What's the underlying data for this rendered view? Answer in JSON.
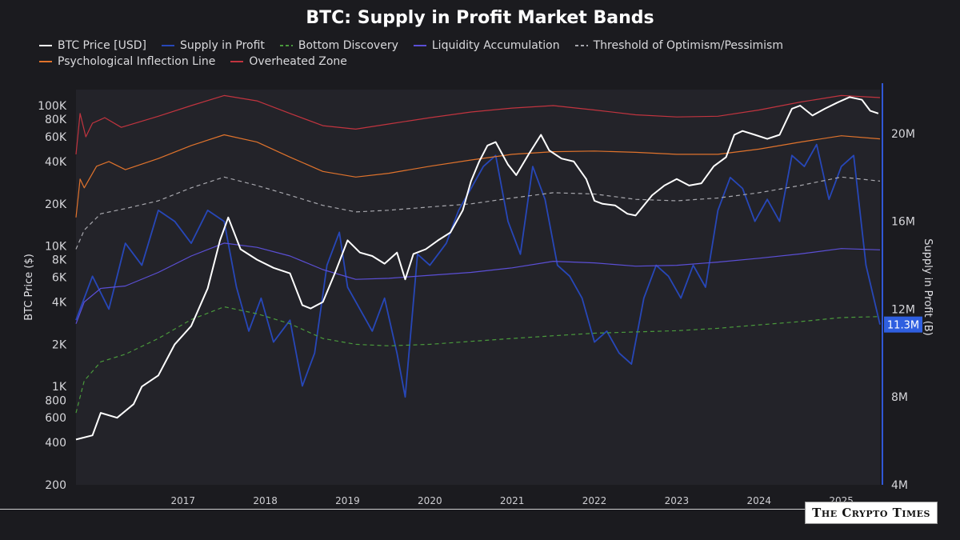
{
  "chart_data": {
    "type": "line",
    "title": "BTC: Supply in Profit Market Bands",
    "ylabel": "BTC Price ($)",
    "y2label": "Supply in Profit (B)",
    "ylim": [
      200,
      130000
    ],
    "y_scale": "log",
    "y2lim": [
      4000000,
      22000000
    ],
    "xlim": [
      2016.2,
      2025.97
    ],
    "x_ticks": [
      "2017",
      "2018",
      "2019",
      "2020",
      "2021",
      "2022",
      "2023",
      "2024",
      "2025"
    ],
    "y_ticks": [
      "100K",
      "80K",
      "60K",
      "40K",
      "20K",
      "10K",
      "8K",
      "6K",
      "4K",
      "2K",
      "1K",
      "800",
      "600",
      "400",
      "200"
    ],
    "y_tick_values": [
      100000,
      80000,
      60000,
      40000,
      20000,
      10000,
      8000,
      6000,
      4000,
      2000,
      1000,
      800,
      600,
      400,
      200
    ],
    "y2_ticks": [
      "20M",
      "16M",
      "12M",
      "8M",
      "4M"
    ],
    "y2_tick_values": [
      20000000,
      16000000,
      12000000,
      8000000,
      4000000
    ],
    "last_value_label": "11.3M",
    "last_value": 11300000,
    "legend_position": "top",
    "grid": false,
    "series": [
      {
        "name": "BTC Price [USD]",
        "color": "#ffffff",
        "dash": "solid",
        "axis": "left",
        "x": [
          2016.2,
          2016.4,
          2016.5,
          2016.7,
          2016.9,
          2017.0,
          2017.2,
          2017.4,
          2017.6,
          2017.8,
          2017.95,
          2018.05,
          2018.2,
          2018.4,
          2018.6,
          2018.8,
          2018.95,
          2019.05,
          2019.2,
          2019.35,
          2019.5,
          2019.65,
          2019.8,
          2019.95,
          2020.1,
          2020.2,
          2020.3,
          2020.45,
          2020.6,
          2020.75,
          2020.9,
          2021.0,
          2021.1,
          2021.2,
          2021.3,
          2021.45,
          2021.55,
          2021.7,
          2021.85,
          2021.95,
          2022.1,
          2022.25,
          2022.4,
          2022.5,
          2022.6,
          2022.75,
          2022.9,
          2023.0,
          2023.2,
          2023.35,
          2023.5,
          2023.65,
          2023.8,
          2023.95,
          2024.1,
          2024.2,
          2024.3,
          2024.45,
          2024.6,
          2024.75,
          2024.9,
          2025.0,
          2025.15,
          2025.3,
          2025.45,
          2025.6,
          2025.75,
          2025.85,
          2025.95
        ],
        "y": [
          420,
          450,
          650,
          600,
          750,
          1000,
          1200,
          2000,
          2700,
          5000,
          11000,
          16000,
          9500,
          8000,
          7000,
          6400,
          3800,
          3600,
          4000,
          6500,
          11000,
          9000,
          8500,
          7500,
          9000,
          5800,
          8800,
          9500,
          11000,
          12500,
          18000,
          29000,
          40000,
          52000,
          55000,
          38000,
          32000,
          45000,
          62000,
          48000,
          42000,
          40000,
          30000,
          21000,
          20000,
          19500,
          17000,
          16500,
          23000,
          27000,
          30000,
          27000,
          28000,
          37000,
          43000,
          62000,
          66000,
          62000,
          58000,
          62000,
          95000,
          100000,
          85000,
          95000,
          105000,
          115000,
          110000,
          92000,
          88000
        ]
      },
      {
        "name": "Supply in Profit",
        "color": "#2747b8",
        "dash": "solid",
        "axis": "right",
        "x": [
          2016.2,
          2016.4,
          2016.6,
          2016.8,
          2017.0,
          2017.2,
          2017.4,
          2017.6,
          2017.8,
          2018.0,
          2018.15,
          2018.3,
          2018.45,
          2018.6,
          2018.8,
          2018.95,
          2019.1,
          2019.25,
          2019.4,
          2019.5,
          2019.65,
          2019.8,
          2019.95,
          2020.1,
          2020.2,
          2020.35,
          2020.5,
          2020.7,
          2020.85,
          2021.0,
          2021.15,
          2021.3,
          2021.45,
          2021.6,
          2021.75,
          2021.9,
          2022.05,
          2022.2,
          2022.35,
          2022.5,
          2022.65,
          2022.8,
          2022.95,
          2023.1,
          2023.25,
          2023.4,
          2023.55,
          2023.7,
          2023.85,
          2024.0,
          2024.15,
          2024.3,
          2024.45,
          2024.6,
          2024.75,
          2024.9,
          2025.05,
          2025.2,
          2025.35,
          2025.5,
          2025.65,
          2025.8,
          2025.97
        ],
        "y": [
          11500000,
          13500000,
          12000000,
          15000000,
          14000000,
          16500000,
          16000000,
          15000000,
          16500000,
          16000000,
          13000000,
          11000000,
          12500000,
          10500000,
          11500000,
          8500000,
          10000000,
          14000000,
          15500000,
          13000000,
          12000000,
          11000000,
          12500000,
          10000000,
          8000000,
          14500000,
          14000000,
          15000000,
          16500000,
          17500000,
          18500000,
          19000000,
          16000000,
          14500000,
          18500000,
          17000000,
          14000000,
          13500000,
          12500000,
          10500000,
          11000000,
          10000000,
          9500000,
          12500000,
          14000000,
          13500000,
          12500000,
          14000000,
          13000000,
          16500000,
          18000000,
          17500000,
          16000000,
          17000000,
          16000000,
          19000000,
          18500000,
          19500000,
          17000000,
          18500000,
          19000000,
          14000000,
          11300000
        ]
      },
      {
        "name": "Bottom Discovery",
        "color": "#4a9a3c",
        "dash": "dashed",
        "axis": "left",
        "x": [
          2016.2,
          2016.3,
          2016.5,
          2016.8,
          2017.2,
          2017.6,
          2018.0,
          2018.4,
          2018.8,
          2019.2,
          2019.6,
          2020.0,
          2020.5,
          2021.0,
          2021.5,
          2022.0,
          2022.5,
          2023.0,
          2023.5,
          2024.0,
          2024.5,
          2025.0,
          2025.5,
          2025.97
        ],
        "y": [
          650,
          1100,
          1500,
          1700,
          2200,
          3000,
          3700,
          3300,
          2800,
          2200,
          2000,
          1950,
          2000,
          2100,
          2200,
          2300,
          2400,
          2450,
          2500,
          2600,
          2750,
          2900,
          3100,
          3150
        ]
      },
      {
        "name": "Liquidity Accumulation",
        "color": "#5b4fd6",
        "dash": "solid",
        "axis": "left",
        "x": [
          2016.2,
          2016.3,
          2016.5,
          2016.8,
          2017.2,
          2017.6,
          2018.0,
          2018.4,
          2018.8,
          2019.2,
          2019.6,
          2020.0,
          2020.5,
          2021.0,
          2021.5,
          2022.0,
          2022.5,
          2023.0,
          2023.5,
          2024.0,
          2024.5,
          2025.0,
          2025.5,
          2025.97
        ],
        "y": [
          2800,
          4000,
          5000,
          5200,
          6500,
          8500,
          10500,
          9800,
          8500,
          6800,
          5800,
          5900,
          6200,
          6500,
          7000,
          7800,
          7600,
          7200,
          7300,
          7700,
          8200,
          8800,
          9600,
          9400
        ]
      },
      {
        "name": "Threshold of Optimism/Pessimism",
        "color": "#a7a7ad",
        "dash": "dashed",
        "axis": "left",
        "x": [
          2016.2,
          2016.3,
          2016.5,
          2016.8,
          2017.2,
          2017.6,
          2018.0,
          2018.4,
          2018.8,
          2019.2,
          2019.6,
          2020.0,
          2020.5,
          2021.0,
          2021.5,
          2022.0,
          2022.5,
          2023.0,
          2023.5,
          2024.0,
          2024.5,
          2025.0,
          2025.5,
          2025.97
        ],
        "y": [
          9500,
          13000,
          17000,
          18500,
          21000,
          26000,
          31000,
          27000,
          23000,
          19500,
          17500,
          18000,
          19000,
          20000,
          22000,
          24000,
          23500,
          21500,
          21000,
          22000,
          24000,
          27000,
          31000,
          29000
        ]
      },
      {
        "name": "Psychological Inflection Line",
        "color": "#e0732c",
        "dash": "solid",
        "axis": "left",
        "x": [
          2016.2,
          2016.25,
          2016.3,
          2016.45,
          2016.6,
          2016.8,
          2017.2,
          2017.6,
          2018.0,
          2018.4,
          2018.8,
          2019.2,
          2019.6,
          2020.0,
          2020.5,
          2021.0,
          2021.5,
          2022.0,
          2022.5,
          2023.0,
          2023.5,
          2024.0,
          2024.5,
          2025.0,
          2025.5,
          2025.97
        ],
        "y": [
          16000,
          30000,
          26000,
          37000,
          40000,
          35000,
          42000,
          52000,
          62000,
          55000,
          43000,
          34000,
          31000,
          33000,
          37000,
          41000,
          45000,
          47000,
          47500,
          46500,
          45000,
          45000,
          49000,
          55000,
          61000,
          58000
        ]
      },
      {
        "name": "Overheated Zone",
        "color": "#c1343f",
        "dash": "solid",
        "axis": "left",
        "x": [
          2016.2,
          2016.25,
          2016.32,
          2016.4,
          2016.55,
          2016.75,
          2017.2,
          2017.6,
          2018.0,
          2018.4,
          2018.8,
          2019.2,
          2019.6,
          2020.0,
          2020.5,
          2021.0,
          2021.5,
          2022.0,
          2022.5,
          2023.0,
          2023.5,
          2024.0,
          2024.5,
          2025.0,
          2025.5,
          2025.97
        ],
        "y": [
          45000,
          88000,
          60000,
          75000,
          82000,
          70000,
          84000,
          100000,
          118000,
          108000,
          88000,
          72000,
          68000,
          74000,
          82000,
          90000,
          96000,
          100000,
          93000,
          86000,
          83000,
          84000,
          93000,
          106000,
          118000,
          114000
        ]
      }
    ]
  },
  "legend": {
    "items": [
      {
        "label": "BTC Price [USD]",
        "color": "#ffffff",
        "dash": false
      },
      {
        "label": "Supply in Profit",
        "color": "#2747b8",
        "dash": false
      },
      {
        "label": "Bottom Discovery",
        "color": "#4a9a3c",
        "dash": true
      },
      {
        "label": "Liquidity Accumulation",
        "color": "#5b4fd6",
        "dash": false
      },
      {
        "label": "Threshold of Optimism/Pessimism",
        "color": "#a7a7ad",
        "dash": true
      },
      {
        "label": "Psychological Inflection Line",
        "color": "#e0732c",
        "dash": false
      },
      {
        "label": "Overheated Zone",
        "color": "#c1343f",
        "dash": false
      }
    ]
  },
  "watermark": {
    "text": "The Crypto Times"
  },
  "colors": {
    "background": "#1b1b1f",
    "plot_background": "#232329",
    "right_axis": "#3057d6"
  }
}
